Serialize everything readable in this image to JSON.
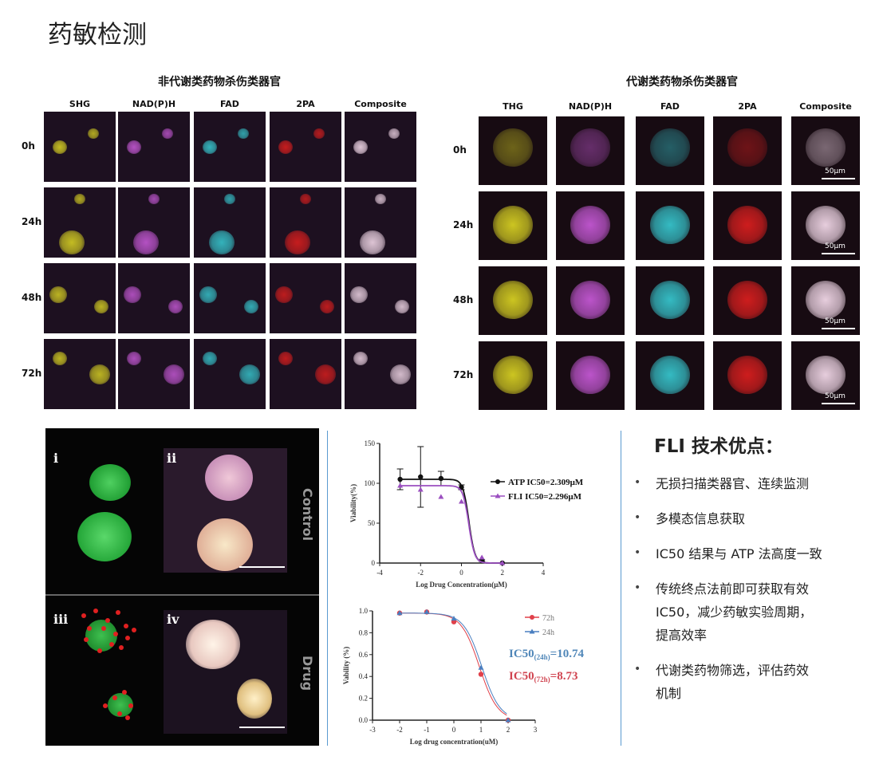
{
  "title": "药敏检测",
  "left_grid": {
    "heading": "非代谢类药物杀伤类器官",
    "columns": [
      "SHG",
      "NAD(P)H",
      "FAD",
      "2PA",
      "Composite"
    ],
    "rows": [
      "0h",
      "24h",
      "48h",
      "72h"
    ]
  },
  "right_grid": {
    "heading": "代谢类药物杀伤类器官",
    "columns": [
      "THG",
      "NAD(P)H",
      "FAD",
      "2PA",
      "Composite"
    ],
    "rows": [
      "0h",
      "24h",
      "48h",
      "72h"
    ],
    "scale_bar": "50μm"
  },
  "channel_colors": {
    "SHG": "#d6cf22",
    "THG": "#d6cf22",
    "NAD(P)H": "#c458d4",
    "FAD": "#36c4cc",
    "2PA": "#d81e1e",
    "Composite": "#f2d8e8"
  },
  "panel": {
    "labels": [
      "i",
      "ii",
      "iii",
      "iv"
    ],
    "conditions": [
      "Control",
      "Drug"
    ]
  },
  "chart_data": [
    {
      "type": "line",
      "xlabel": "Log Drug Concentration(μM)",
      "ylabel": "Viability(%)",
      "xlim": [
        -4,
        4
      ],
      "ylim": [
        0,
        150
      ],
      "xticks": [
        "-4",
        "-2",
        "0",
        "2",
        "4"
      ],
      "yticks": [
        "0",
        "50",
        "100",
        "150"
      ],
      "legend_position": "right",
      "series": [
        {
          "name": "ATP IC50=2.309μM",
          "color": "#111111",
          "marker": "circle",
          "x": [
            -3,
            -2,
            -1,
            0,
            1,
            2
          ],
          "y": [
            105,
            108,
            106,
            95,
            3,
            0
          ],
          "error": [
            13,
            38,
            9,
            3,
            1,
            0
          ],
          "ic50": 2.309
        },
        {
          "name": "FLI IC50=2.296μM",
          "color": "#9b4fc0",
          "marker": "triangle",
          "x": [
            -3,
            -2,
            -1,
            0,
            1,
            2
          ],
          "y": [
            97,
            92,
            83,
            77,
            7,
            0
          ],
          "ic50": 2.296
        }
      ]
    },
    {
      "type": "line",
      "xlabel": "Log drug concentration(uM)",
      "ylabel": "Vability (%)",
      "xlim": [
        -3,
        3
      ],
      "ylim": [
        0,
        1
      ],
      "xticks": [
        "-3",
        "-2",
        "-1",
        "0",
        "1",
        "2",
        "3"
      ],
      "yticks": [
        "0.0",
        "0.2",
        "0.4",
        "0.6",
        "0.8",
        "1.0"
      ],
      "legend_position": "right",
      "series": [
        {
          "name": "72h",
          "color": "#e0404a",
          "marker": "circle",
          "x": [
            -2,
            -1,
            0,
            1,
            2
          ],
          "y": [
            0.98,
            0.99,
            0.9,
            0.42,
            0
          ],
          "ic50": 8.73
        },
        {
          "name": "24h",
          "color": "#4a7fc0",
          "marker": "triangle",
          "x": [
            -2,
            -1,
            0,
            1,
            2
          ],
          "y": [
            0.98,
            0.99,
            0.93,
            0.48,
            0
          ],
          "ic50": 10.74
        }
      ],
      "annotations": [
        {
          "label": "IC50",
          "sub": "(24h)",
          "value": "=10.74",
          "color": "#4f86b8"
        },
        {
          "label": "IC50",
          "sub": "(72h)",
          "value": "=8.73",
          "color": "#d04450"
        }
      ]
    }
  ],
  "advantages": {
    "heading": "FLI 技术优点：",
    "items": [
      [
        "无损扫描类器官、连续监测"
      ],
      [
        "多模态信息获取"
      ],
      [
        "IC50 结果与 ATP 法高度一致"
      ],
      [
        "传统终点法前即可获取有效",
        "IC50，减少药敏实验周期，",
        "提高效率"
      ],
      [
        "代谢类药物筛选，评估药效",
        "机制"
      ]
    ]
  }
}
